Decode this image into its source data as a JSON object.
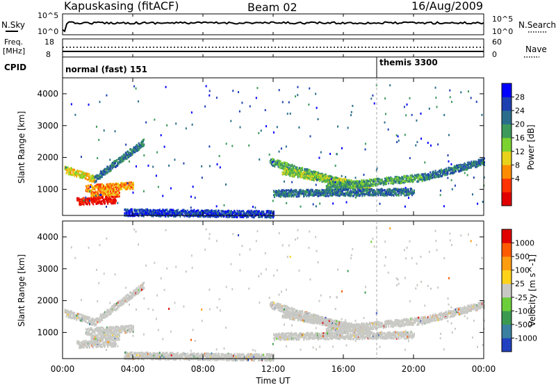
{
  "header": {
    "station": "Kapuskasing (fitACF)",
    "beam": "Beam 02",
    "date": "16/Aug/2009"
  },
  "noise_panel": {
    "left_label": "N.Sky",
    "right_label": "N.Search",
    "left_ticks": [
      "10^5",
      "10^0"
    ],
    "right_ticks": [
      "10^5",
      "10^0"
    ]
  },
  "freq_panel": {
    "left_label_1": "Freq.",
    "left_label_2": "[MHz]",
    "right_label": "Nave",
    "left_ticks": [
      "18",
      "8"
    ],
    "right_ticks": [
      "60",
      "0"
    ]
  },
  "cpid_panel": {
    "label": "CPID",
    "modes": [
      {
        "name": "normal (fast) 151",
        "start_hour": 0
      },
      {
        "name": "themis 3300",
        "start_hour": 18
      }
    ]
  },
  "chart_data": [
    {
      "type": "heatmap",
      "name": "power",
      "ylabel": "Slant Range [km]",
      "ylim": [
        180,
        4500
      ],
      "xlim": [
        0,
        24
      ],
      "yticks": [
        "4000",
        "3000",
        "2000",
        "1000"
      ],
      "colorbar_label": "Power [dB]",
      "colorbar_ticks": [
        "28",
        "24",
        "20",
        "16",
        "12",
        "8",
        "4"
      ],
      "colorbar_colors": [
        "#0000ff",
        "#1e3fb0",
        "#2a6e8c",
        "#3d9a5a",
        "#7cd22e",
        "#e8d21a",
        "#ff8c00",
        "#ff3300",
        "#e00000"
      ],
      "bands": [
        {
          "t0": 0.1,
          "t1": 1.8,
          "r_start": 1650,
          "r_end": 1350,
          "level": 5
        },
        {
          "t0": 1.8,
          "t1": 4.6,
          "r_start": 1350,
          "r_end": 2500,
          "level": 2
        },
        {
          "t0": 1.3,
          "t1": 4.0,
          "r_start": 1050,
          "r_end": 1150,
          "level": 6
        },
        {
          "t0": 1.6,
          "t1": 3.2,
          "r_start": 850,
          "r_end": 900,
          "level": 6
        },
        {
          "t0": 0.8,
          "t1": 3.0,
          "r_start": 650,
          "r_end": 700,
          "level": 8
        },
        {
          "t0": 11.8,
          "t1": 15.5,
          "r_start": 1900,
          "r_end": 1300,
          "level": 3
        },
        {
          "t0": 12.5,
          "t1": 17.5,
          "r_start": 1600,
          "r_end": 1100,
          "level": 4
        },
        {
          "t0": 15.0,
          "t1": 20.5,
          "r_start": 1100,
          "r_end": 1400,
          "level": 3
        },
        {
          "t0": 20.5,
          "t1": 24.0,
          "r_start": 1400,
          "r_end": 1900,
          "level": 2
        },
        {
          "t0": 12.0,
          "t1": 20.0,
          "r_start": 900,
          "r_end": 950,
          "level": 2
        },
        {
          "t0": 3.5,
          "t1": 12.0,
          "r_start": 300,
          "r_end": 250,
          "level": 1
        }
      ]
    },
    {
      "type": "heatmap",
      "name": "velocity",
      "ylabel": "Slant Range [km]",
      "xlabel": "Time UT",
      "ylim": [
        180,
        4500
      ],
      "xlim": [
        0,
        24
      ],
      "yticks": [
        "4000",
        "3000",
        "2000",
        "1000"
      ],
      "xticks": [
        "00:00",
        "04:00",
        "08:00",
        "12:00",
        "16:00",
        "20:00",
        "00:00"
      ],
      "colorbar_label": "Velocity [m s^-1]",
      "colorbar_ticks": [
        "1000",
        "500",
        "100",
        "25",
        "-25",
        "-100",
        "-500",
        "-1000"
      ],
      "colorbar_colors": [
        "#2040c0",
        "#3a80a0",
        "#3c9a50",
        "#6ccf3a",
        "#c8c8c4",
        "#ffd21a",
        "#ff9c10",
        "#ff5a00",
        "#e00000"
      ],
      "dominant_color": "#c8c8c4"
    }
  ]
}
